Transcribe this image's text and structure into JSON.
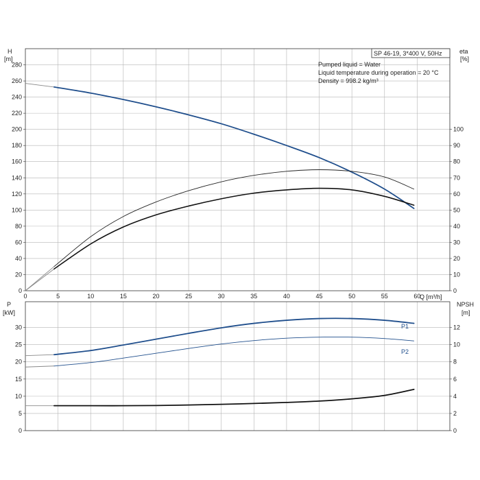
{
  "chart_data": [
    {
      "type": "line",
      "pump_label": "SP 46-19, 3*400 V, 50Hz",
      "info_lines": [
        "Pumped liquid = Water",
        "Liquid temperature during operation = 20 °C",
        "Density = 998.2 kg/m³"
      ],
      "xlabel": "Q [m³/h]",
      "xlim": [
        0,
        65
      ],
      "xticks": [
        0,
        5,
        10,
        15,
        20,
        25,
        30,
        35,
        40,
        45,
        50,
        55,
        60
      ],
      "ylabel_left": [
        "H",
        "[m]"
      ],
      "ylim_left": [
        0,
        300
      ],
      "yticks_left": [
        0,
        20,
        40,
        60,
        80,
        100,
        120,
        140,
        160,
        180,
        200,
        220,
        240,
        260,
        280
      ],
      "ylabel_right": [
        "eta",
        "[%]"
      ],
      "ylim_right": [
        0,
        150
      ],
      "yticks_right": [
        0,
        10,
        20,
        30,
        40,
        50,
        60,
        70,
        80,
        90,
        100
      ],
      "grid": true,
      "series": [
        {
          "axis": "left",
          "color": "#1f4e8c",
          "width": 1.8,
          "ext": [
            [
              0,
              257
            ],
            [
              4.4,
              252.5
            ]
          ],
          "x": [
            4.4,
            10,
            15,
            20,
            25,
            30,
            35,
            40,
            45,
            50,
            55,
            59.5
          ],
          "y": [
            252.5,
            245,
            237,
            228,
            218,
            207,
            194,
            180,
            165,
            147,
            126,
            102
          ]
        },
        {
          "axis": "right",
          "color": "#222222",
          "width": 0.9,
          "ext": [
            [
              0,
              0
            ],
            [
              4.4,
              15
            ]
          ],
          "x": [
            4.4,
            10,
            15,
            20,
            25,
            30,
            35,
            40,
            45,
            50,
            55,
            59.5
          ],
          "y": [
            15,
            33.5,
            46,
            55,
            62,
            67.5,
            71.5,
            74,
            75,
            74,
            70.5,
            63
          ]
        },
        {
          "axis": "right",
          "color": "#111111",
          "width": 1.6,
          "ext": [
            [
              0,
              0
            ],
            [
              4.4,
              13.5
            ]
          ],
          "x": [
            4.4,
            10,
            15,
            20,
            25,
            30,
            35,
            40,
            45,
            50,
            55,
            59.5
          ],
          "y": [
            13.5,
            29,
            39.5,
            47,
            52.5,
            57,
            60.5,
            62.5,
            63.5,
            62.5,
            58.5,
            53
          ]
        }
      ]
    },
    {
      "type": "line",
      "xlim": [
        0,
        65
      ],
      "ylabel_left": [
        "P",
        "[kW]"
      ],
      "ylim_left": [
        0,
        37.5
      ],
      "yticks_left": [
        0,
        5,
        10,
        15,
        20,
        25,
        30
      ],
      "ylabel_right": [
        "NPSH",
        "[m]"
      ],
      "ylim_right": [
        0,
        15
      ],
      "yticks_right": [
        0,
        2,
        4,
        6,
        8,
        10,
        12
      ],
      "grid": true,
      "series": [
        {
          "name": "P1",
          "axis": "left",
          "color": "#1f4e8c",
          "width": 1.8,
          "ext": [
            [
              0,
              21.8
            ],
            [
              4.4,
              22.1
            ]
          ],
          "x": [
            4.4,
            10,
            15,
            20,
            25,
            30,
            35,
            40,
            45,
            50,
            55,
            59.5
          ],
          "y": [
            22.1,
            23.3,
            24.9,
            26.6,
            28.3,
            29.9,
            31.2,
            32.1,
            32.6,
            32.6,
            32.1,
            31.2
          ]
        },
        {
          "name": "P2",
          "axis": "left",
          "color": "#1f4e8c",
          "width": 0.9,
          "ext": [
            [
              0,
              18.5
            ],
            [
              4.4,
              18.8
            ]
          ],
          "x": [
            4.4,
            10,
            15,
            20,
            25,
            30,
            35,
            40,
            45,
            50,
            55,
            59.5
          ],
          "y": [
            18.8,
            19.8,
            21.1,
            22.5,
            23.9,
            25.2,
            26.2,
            26.9,
            27.2,
            27.2,
            26.8,
            26.1
          ]
        },
        {
          "axis": "right",
          "color": "#111111",
          "width": 1.8,
          "ext": [
            [
              0,
              2.9
            ],
            [
              4.4,
              2.9
            ]
          ],
          "x": [
            4.4,
            10,
            15,
            20,
            25,
            30,
            35,
            40,
            45,
            50,
            55,
            59.5
          ],
          "y": [
            2.9,
            2.9,
            2.9,
            2.92,
            2.98,
            3.06,
            3.16,
            3.28,
            3.44,
            3.7,
            4.1,
            4.8
          ]
        }
      ]
    }
  ]
}
